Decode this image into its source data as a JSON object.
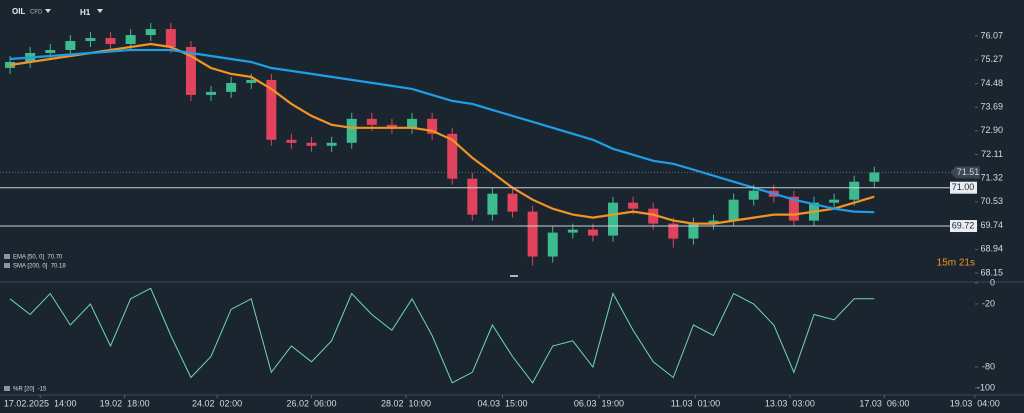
{
  "header": {
    "symbol": "OIL",
    "kind": "CFD",
    "timeframe": "H1"
  },
  "chart_data": [
    {
      "type": "candlestick",
      "xlim": [
        -0.5,
        50
      ],
      "xticks": [
        {
          "value": 1.5,
          "label": "17.02.2025  14:00"
        },
        {
          "value": 5.7,
          "label": "19.02  18:00"
        },
        {
          "value": 10.3,
          "label": "24.02  02:00"
        },
        {
          "value": 15,
          "label": "26.02  06:00"
        },
        {
          "value": 19.7,
          "label": "28.02  10:00"
        },
        {
          "value": 24.5,
          "label": "04.03  15:00"
        },
        {
          "value": 29.3,
          "label": "06.03  19:00"
        },
        {
          "value": 34.1,
          "label": "11.03  01:00"
        },
        {
          "value": 38.8,
          "label": "13.03  03:00"
        },
        {
          "value": 43.5,
          "label": "17.03  06:00"
        },
        {
          "value": 48,
          "label": "19.03  04:00"
        }
      ],
      "ylim": [
        67.85,
        77.27
      ],
      "yticks": [
        76.07,
        75.27,
        74.48,
        73.69,
        {
          "value": 72.9,
          "label": "72.90"
        },
        72.11,
        71.32,
        70.53,
        69.74,
        68.94,
        68.15
      ],
      "up_color": "#3dbb8e",
      "down_color": "#e0435b",
      "open": [
        75.0,
        75.2,
        75.5,
        75.6,
        75.9,
        76.0,
        75.8,
        76.1,
        76.3,
        75.7,
        74.1,
        74.2,
        74.5,
        74.6,
        72.6,
        72.5,
        72.4,
        72.5,
        73.3,
        73.1,
        73.0,
        73.3,
        72.8,
        71.3,
        70.1,
        70.8,
        70.2,
        68.7,
        69.5,
        69.6,
        69.4,
        70.5,
        70.3,
        69.8,
        69.3,
        69.8,
        69.9,
        70.6,
        70.9,
        70.7,
        69.9,
        70.5,
        70.6,
        71.2
      ],
      "high": [
        75.4,
        75.7,
        75.8,
        76.1,
        76.2,
        76.2,
        76.3,
        76.5,
        76.5,
        75.9,
        74.4,
        74.7,
        74.8,
        74.8,
        72.8,
        72.7,
        72.7,
        73.5,
        73.5,
        73.3,
        73.5,
        73.5,
        73.0,
        71.5,
        71.0,
        71.0,
        70.4,
        69.7,
        69.8,
        69.8,
        70.7,
        70.7,
        70.5,
        70.0,
        70.0,
        70.1,
        70.8,
        71.1,
        71.1,
        70.9,
        70.7,
        70.8,
        71.4,
        71.7
      ],
      "low": [
        74.8,
        75.0,
        75.3,
        75.4,
        75.7,
        75.6,
        75.6,
        75.9,
        75.5,
        73.9,
        73.9,
        74.0,
        74.3,
        72.4,
        72.3,
        72.2,
        72.2,
        72.3,
        72.9,
        72.8,
        72.8,
        72.6,
        71.1,
        69.9,
        69.9,
        70.0,
        68.4,
        68.5,
        69.3,
        69.2,
        69.2,
        70.1,
        69.6,
        69.0,
        69.1,
        69.6,
        69.7,
        70.4,
        70.5,
        69.7,
        69.7,
        70.3,
        70.4,
        71.0
      ],
      "close": [
        75.2,
        75.5,
        75.6,
        75.9,
        76.0,
        75.8,
        76.1,
        76.3,
        75.7,
        74.1,
        74.2,
        74.5,
        74.6,
        72.6,
        72.5,
        72.4,
        72.5,
        73.3,
        73.1,
        73.0,
        73.3,
        72.8,
        71.3,
        70.1,
        70.8,
        70.2,
        68.7,
        69.5,
        69.6,
        69.4,
        70.5,
        70.3,
        69.8,
        69.3,
        69.8,
        69.9,
        70.6,
        70.9,
        70.7,
        69.9,
        70.5,
        70.6,
        71.2,
        71.51
      ],
      "series": [
        {
          "name": "EMA [50, 0]  70.70",
          "color": "#f29423",
          "values": [
            75.1,
            75.2,
            75.3,
            75.4,
            75.5,
            75.6,
            75.7,
            75.8,
            75.7,
            75.4,
            75.0,
            74.8,
            74.7,
            74.3,
            73.8,
            73.4,
            73.1,
            73.0,
            73.0,
            73.0,
            73.0,
            72.9,
            72.6,
            72.0,
            71.5,
            71.0,
            70.6,
            70.3,
            70.1,
            70.0,
            70.1,
            70.2,
            70.1,
            69.9,
            69.8,
            69.8,
            69.9,
            70.0,
            70.1,
            70.1,
            70.2,
            70.3,
            70.5,
            70.7
          ]
        },
        {
          "name": "SMA [200, 0]  70.18",
          "color": "#1e9ee8",
          "values": [
            75.3,
            75.35,
            75.4,
            75.45,
            75.5,
            75.55,
            75.6,
            75.6,
            75.6,
            75.5,
            75.4,
            75.3,
            75.2,
            75.0,
            74.9,
            74.8,
            74.7,
            74.6,
            74.5,
            74.4,
            74.3,
            74.1,
            73.9,
            73.8,
            73.6,
            73.4,
            73.2,
            73.0,
            72.8,
            72.6,
            72.3,
            72.1,
            71.9,
            71.8,
            71.6,
            71.4,
            71.2,
            71.0,
            70.8,
            70.6,
            70.45,
            70.3,
            70.2,
            70.18
          ]
        }
      ],
      "levels": [
        {
          "value": 71,
          "label": "71.00"
        },
        {
          "value": 69.72,
          "label": "69.72"
        }
      ],
      "last_price": 71.51,
      "timer": "15m 21s"
    },
    {
      "type": "line",
      "ylim": [
        -100,
        0
      ],
      "yticks": [
        0,
        -20,
        -80,
        -100
      ],
      "series": [
        {
          "name": "%R [20]  -15",
          "color": "#6fd6b8",
          "values": [
            -15,
            -30,
            -10,
            -40,
            -20,
            -60,
            -15,
            -5,
            -50,
            -90,
            -70,
            -25,
            -15,
            -85,
            -60,
            -75,
            -55,
            -10,
            -30,
            -45,
            -15,
            -50,
            -95,
            -85,
            -40,
            -70,
            -95,
            -60,
            -55,
            -80,
            -10,
            -45,
            -75,
            -90,
            -40,
            -50,
            -10,
            -20,
            -40,
            -85,
            -30,
            -35,
            -15,
            -15
          ]
        }
      ]
    }
  ]
}
